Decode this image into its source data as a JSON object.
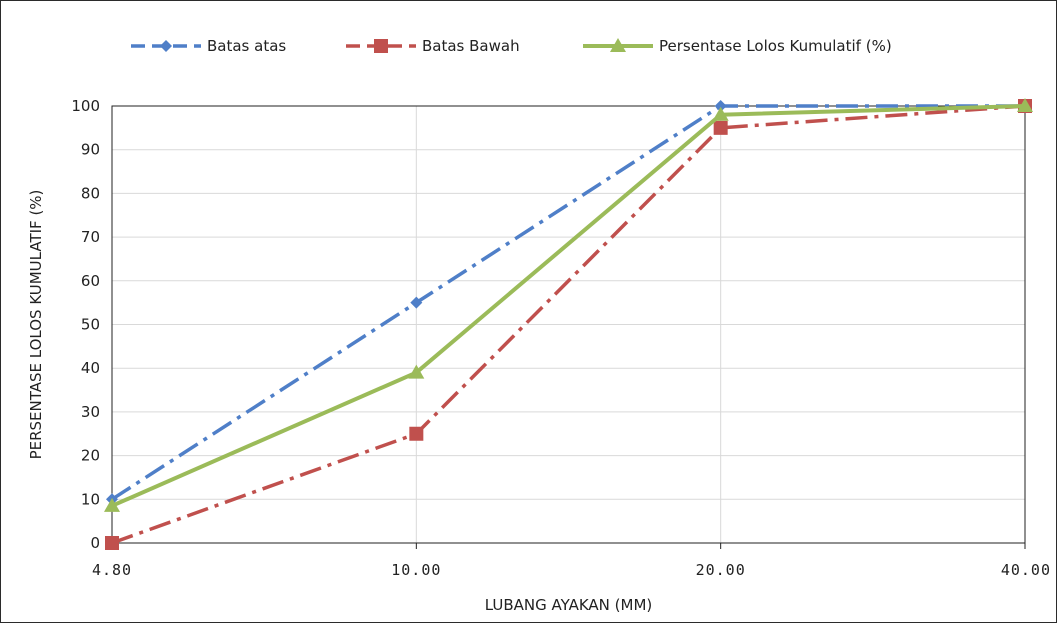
{
  "chart_data": {
    "type": "line",
    "categories": [
      "4.80",
      "10.00",
      "20.00",
      "40.00"
    ],
    "xlabel": "LUBANG AYAKAN (MM)",
    "ylabel": "PERSENTASE LOLOS KUMULATIF (%)",
    "ylim": [
      0,
      100
    ],
    "yticks": [
      0,
      10,
      20,
      30,
      40,
      50,
      60,
      70,
      80,
      90,
      100
    ],
    "grid": true,
    "legend_position": "top",
    "series": [
      {
        "name": "Batas atas",
        "values": [
          10,
          55,
          100,
          100
        ],
        "color": "#4f7fc8",
        "dash": "dash-dot",
        "marker": "diamond"
      },
      {
        "name": "Batas Bawah",
        "values": [
          0,
          25,
          95,
          100
        ],
        "color": "#c0504d",
        "dash": "dash-dot",
        "marker": "square"
      },
      {
        "name": "Persentase Lolos Kumulatif (%)",
        "values": [
          8.5,
          39,
          98,
          100
        ],
        "color": "#9bbb59",
        "dash": "solid",
        "marker": "triangle"
      }
    ]
  }
}
